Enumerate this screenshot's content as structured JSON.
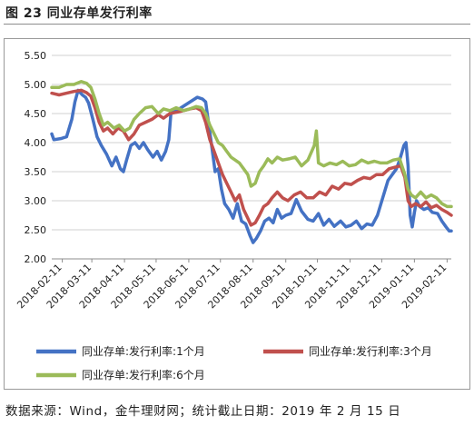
{
  "figure": {
    "title": "图 23 同业存单发行利率",
    "source": "数据来源：Wind，金牛理财网；统计截止日期：2019 年 2 月 15 日"
  },
  "chart_data": {
    "type": "line",
    "title": "",
    "xlabel": "",
    "ylabel": "",
    "ylim": [
      2.0,
      5.5
    ],
    "yticks": [
      "5.50",
      "5.00",
      "4.50",
      "4.00",
      "3.50",
      "3.00",
      "2.50",
      "2.00"
    ],
    "xticks": [
      "2018-02-11",
      "2018-03-11",
      "2018-04-11",
      "2018-05-11",
      "2018-06-11",
      "2018-07-11",
      "2018-08-11",
      "2018-09-11",
      "2018-10-11",
      "2018-11-11",
      "2018-12-11",
      "2019-01-11",
      "2019-02-11"
    ],
    "x_range": [
      "2018-02-01",
      "2019-02-15"
    ],
    "grid": "horizontal",
    "legend_position": "bottom",
    "series": [
      {
        "name": "同业存单:发行利率:1个月",
        "color": "#4472c4",
        "points": [
          [
            "2018-02-01",
            4.15
          ],
          [
            "2018-02-03",
            4.05
          ],
          [
            "2018-02-10",
            4.07
          ],
          [
            "2018-02-15",
            4.1
          ],
          [
            "2018-02-20",
            4.4
          ],
          [
            "2018-02-23",
            4.7
          ],
          [
            "2018-02-26",
            4.9
          ],
          [
            "2018-03-02",
            4.82
          ],
          [
            "2018-03-05",
            4.78
          ],
          [
            "2018-03-08",
            4.68
          ],
          [
            "2018-03-12",
            4.4
          ],
          [
            "2018-03-16",
            4.1
          ],
          [
            "2018-03-20",
            3.95
          ],
          [
            "2018-03-25",
            3.8
          ],
          [
            "2018-03-30",
            3.6
          ],
          [
            "2018-04-03",
            3.75
          ],
          [
            "2018-04-07",
            3.55
          ],
          [
            "2018-04-10",
            3.5
          ],
          [
            "2018-04-13",
            3.7
          ],
          [
            "2018-04-17",
            3.95
          ],
          [
            "2018-04-21",
            4.0
          ],
          [
            "2018-04-25",
            3.9
          ],
          [
            "2018-04-29",
            4.0
          ],
          [
            "2018-05-03",
            3.88
          ],
          [
            "2018-05-08",
            3.75
          ],
          [
            "2018-05-12",
            3.85
          ],
          [
            "2018-05-16",
            3.7
          ],
          [
            "2018-05-20",
            3.85
          ],
          [
            "2018-05-23",
            4.05
          ],
          [
            "2018-05-25",
            4.5
          ],
          [
            "2018-05-28",
            4.55
          ],
          [
            "2018-06-02",
            4.58
          ],
          [
            "2018-06-08",
            4.65
          ],
          [
            "2018-06-14",
            4.72
          ],
          [
            "2018-06-19",
            4.78
          ],
          [
            "2018-06-24",
            4.75
          ],
          [
            "2018-06-27",
            4.7
          ],
          [
            "2018-06-30",
            4.3
          ],
          [
            "2018-07-03",
            3.9
          ],
          [
            "2018-07-06",
            3.5
          ],
          [
            "2018-07-09",
            3.55
          ],
          [
            "2018-07-12",
            3.2
          ],
          [
            "2018-07-15",
            2.95
          ],
          [
            "2018-07-19",
            2.85
          ],
          [
            "2018-07-23",
            2.7
          ],
          [
            "2018-07-27",
            2.95
          ],
          [
            "2018-07-31",
            2.65
          ],
          [
            "2018-08-04",
            2.6
          ],
          [
            "2018-08-08",
            2.4
          ],
          [
            "2018-08-11",
            2.28
          ],
          [
            "2018-08-14",
            2.35
          ],
          [
            "2018-08-18",
            2.48
          ],
          [
            "2018-08-22",
            2.65
          ],
          [
            "2018-08-26",
            2.7
          ],
          [
            "2018-08-30",
            2.62
          ],
          [
            "2018-09-03",
            2.85
          ],
          [
            "2018-09-07",
            2.7
          ],
          [
            "2018-09-11",
            2.75
          ],
          [
            "2018-09-16",
            2.78
          ],
          [
            "2018-09-21",
            3.02
          ],
          [
            "2018-09-26",
            2.82
          ],
          [
            "2018-10-02",
            2.68
          ],
          [
            "2018-10-07",
            2.65
          ],
          [
            "2018-10-12",
            2.78
          ],
          [
            "2018-10-17",
            2.58
          ],
          [
            "2018-10-22",
            2.68
          ],
          [
            "2018-10-27",
            2.56
          ],
          [
            "2018-11-02",
            2.65
          ],
          [
            "2018-11-07",
            2.55
          ],
          [
            "2018-11-12",
            2.58
          ],
          [
            "2018-11-17",
            2.65
          ],
          [
            "2018-11-22",
            2.52
          ],
          [
            "2018-11-27",
            2.6
          ],
          [
            "2018-12-02",
            2.58
          ],
          [
            "2018-12-07",
            2.75
          ],
          [
            "2018-12-12",
            3.05
          ],
          [
            "2018-12-17",
            3.35
          ],
          [
            "2018-12-21",
            3.45
          ],
          [
            "2018-12-25",
            3.55
          ],
          [
            "2018-12-28",
            3.7
          ],
          [
            "2019-01-01",
            3.95
          ],
          [
            "2019-01-03",
            4.0
          ],
          [
            "2019-01-05",
            3.6
          ],
          [
            "2019-01-07",
            2.75
          ],
          [
            "2019-01-09",
            2.55
          ],
          [
            "2019-01-11",
            2.8
          ],
          [
            "2019-01-13",
            3.0
          ],
          [
            "2019-01-16",
            2.9
          ],
          [
            "2019-01-20",
            2.85
          ],
          [
            "2019-01-24",
            2.88
          ],
          [
            "2019-01-28",
            2.8
          ],
          [
            "2019-02-02",
            2.78
          ],
          [
            "2019-02-06",
            2.65
          ],
          [
            "2019-02-10",
            2.55
          ],
          [
            "2019-02-13",
            2.48
          ],
          [
            "2019-02-15",
            2.48
          ]
        ]
      },
      {
        "name": "同业存单:发行利率:3个月",
        "color": "#c0504d",
        "points": [
          [
            "2018-02-01",
            4.85
          ],
          [
            "2018-02-08",
            4.82
          ],
          [
            "2018-02-15",
            4.85
          ],
          [
            "2018-02-22",
            4.88
          ],
          [
            "2018-03-01",
            4.9
          ],
          [
            "2018-03-06",
            4.86
          ],
          [
            "2018-03-10",
            4.8
          ],
          [
            "2018-03-14",
            4.6
          ],
          [
            "2018-03-18",
            4.35
          ],
          [
            "2018-03-22",
            4.2
          ],
          [
            "2018-03-26",
            4.25
          ],
          [
            "2018-03-31",
            4.15
          ],
          [
            "2018-04-05",
            4.25
          ],
          [
            "2018-04-10",
            4.2
          ],
          [
            "2018-04-15",
            4.05
          ],
          [
            "2018-04-20",
            4.15
          ],
          [
            "2018-04-25",
            4.3
          ],
          [
            "2018-05-01",
            4.35
          ],
          [
            "2018-05-07",
            4.4
          ],
          [
            "2018-05-13",
            4.48
          ],
          [
            "2018-05-18",
            4.42
          ],
          [
            "2018-05-24",
            4.5
          ],
          [
            "2018-05-30",
            4.52
          ],
          [
            "2018-06-06",
            4.55
          ],
          [
            "2018-06-12",
            4.58
          ],
          [
            "2018-06-18",
            4.6
          ],
          [
            "2018-06-23",
            4.55
          ],
          [
            "2018-06-27",
            4.35
          ],
          [
            "2018-07-01",
            4.05
          ],
          [
            "2018-07-05",
            3.85
          ],
          [
            "2018-07-09",
            3.65
          ],
          [
            "2018-07-13",
            3.45
          ],
          [
            "2018-07-17",
            3.3
          ],
          [
            "2018-07-21",
            3.15
          ],
          [
            "2018-07-25",
            3.0
          ],
          [
            "2018-07-29",
            3.1
          ],
          [
            "2018-08-02",
            2.85
          ],
          [
            "2018-08-06",
            2.7
          ],
          [
            "2018-08-09",
            2.58
          ],
          [
            "2018-08-13",
            2.62
          ],
          [
            "2018-08-17",
            2.75
          ],
          [
            "2018-08-21",
            2.9
          ],
          [
            "2018-08-25",
            2.95
          ],
          [
            "2018-08-29",
            3.05
          ],
          [
            "2018-09-03",
            3.15
          ],
          [
            "2018-09-08",
            3.05
          ],
          [
            "2018-09-13",
            3.0
          ],
          [
            "2018-09-19",
            3.1
          ],
          [
            "2018-09-25",
            3.15
          ],
          [
            "2018-10-01",
            3.05
          ],
          [
            "2018-10-07",
            3.05
          ],
          [
            "2018-10-13",
            3.15
          ],
          [
            "2018-10-19",
            3.1
          ],
          [
            "2018-10-25",
            3.25
          ],
          [
            "2018-10-31",
            3.2
          ],
          [
            "2018-11-06",
            3.3
          ],
          [
            "2018-11-12",
            3.28
          ],
          [
            "2018-11-18",
            3.35
          ],
          [
            "2018-11-24",
            3.4
          ],
          [
            "2018-11-30",
            3.38
          ],
          [
            "2018-12-06",
            3.45
          ],
          [
            "2018-12-12",
            3.45
          ],
          [
            "2018-12-18",
            3.55
          ],
          [
            "2018-12-24",
            3.58
          ],
          [
            "2018-12-29",
            3.6
          ],
          [
            "2019-01-02",
            3.4
          ],
          [
            "2019-01-05",
            3.0
          ],
          [
            "2019-01-08",
            2.9
          ],
          [
            "2019-01-12",
            2.95
          ],
          [
            "2019-01-17",
            2.9
          ],
          [
            "2019-01-22",
            2.98
          ],
          [
            "2019-01-27",
            2.88
          ],
          [
            "2019-02-01",
            2.92
          ],
          [
            "2019-02-06",
            2.85
          ],
          [
            "2019-02-11",
            2.8
          ],
          [
            "2019-02-15",
            2.75
          ]
        ]
      },
      {
        "name": "同业存单:发行利率:6个月",
        "color": "#9bbb59",
        "points": [
          [
            "2018-02-01",
            4.95
          ],
          [
            "2018-02-08",
            4.95
          ],
          [
            "2018-02-15",
            5.0
          ],
          [
            "2018-02-22",
            5.0
          ],
          [
            "2018-03-01",
            5.05
          ],
          [
            "2018-03-06",
            5.02
          ],
          [
            "2018-03-10",
            4.95
          ],
          [
            "2018-03-14",
            4.75
          ],
          [
            "2018-03-18",
            4.5
          ],
          [
            "2018-03-22",
            4.3
          ],
          [
            "2018-03-26",
            4.35
          ],
          [
            "2018-04-01",
            4.25
          ],
          [
            "2018-04-06",
            4.3
          ],
          [
            "2018-04-11",
            4.2
          ],
          [
            "2018-04-16",
            4.25
          ],
          [
            "2018-04-20",
            4.4
          ],
          [
            "2018-04-25",
            4.5
          ],
          [
            "2018-05-01",
            4.6
          ],
          [
            "2018-05-07",
            4.62
          ],
          [
            "2018-05-13",
            4.5
          ],
          [
            "2018-05-18",
            4.58
          ],
          [
            "2018-05-24",
            4.55
          ],
          [
            "2018-05-30",
            4.6
          ],
          [
            "2018-06-06",
            4.55
          ],
          [
            "2018-06-12",
            4.58
          ],
          [
            "2018-06-18",
            4.62
          ],
          [
            "2018-06-23",
            4.6
          ],
          [
            "2018-06-27",
            4.5
          ],
          [
            "2018-07-01",
            4.3
          ],
          [
            "2018-07-05",
            4.15
          ],
          [
            "2018-07-09",
            4.0
          ],
          [
            "2018-07-13",
            3.95
          ],
          [
            "2018-07-17",
            3.85
          ],
          [
            "2018-07-21",
            3.75
          ],
          [
            "2018-07-25",
            3.7
          ],
          [
            "2018-07-29",
            3.65
          ],
          [
            "2018-08-02",
            3.55
          ],
          [
            "2018-08-06",
            3.45
          ],
          [
            "2018-08-09",
            3.25
          ],
          [
            "2018-08-13",
            3.3
          ],
          [
            "2018-08-17",
            3.5
          ],
          [
            "2018-08-21",
            3.6
          ],
          [
            "2018-08-25",
            3.72
          ],
          [
            "2018-08-29",
            3.65
          ],
          [
            "2018-09-03",
            3.75
          ],
          [
            "2018-09-08",
            3.7
          ],
          [
            "2018-09-14",
            3.72
          ],
          [
            "2018-09-20",
            3.75
          ],
          [
            "2018-09-26",
            3.6
          ],
          [
            "2018-10-02",
            3.7
          ],
          [
            "2018-10-08",
            3.95
          ],
          [
            "2018-10-10",
            4.2
          ],
          [
            "2018-10-12",
            3.65
          ],
          [
            "2018-10-17",
            3.6
          ],
          [
            "2018-10-23",
            3.65
          ],
          [
            "2018-10-29",
            3.62
          ],
          [
            "2018-11-04",
            3.68
          ],
          [
            "2018-11-10",
            3.6
          ],
          [
            "2018-11-16",
            3.62
          ],
          [
            "2018-11-22",
            3.7
          ],
          [
            "2018-11-28",
            3.65
          ],
          [
            "2018-12-04",
            3.68
          ],
          [
            "2018-12-10",
            3.65
          ],
          [
            "2018-12-16",
            3.65
          ],
          [
            "2018-12-22",
            3.7
          ],
          [
            "2018-12-28",
            3.72
          ],
          [
            "2019-01-02",
            3.45
          ],
          [
            "2019-01-05",
            3.2
          ],
          [
            "2019-01-08",
            3.1
          ],
          [
            "2019-01-12",
            3.05
          ],
          [
            "2019-01-17",
            3.15
          ],
          [
            "2019-01-22",
            3.05
          ],
          [
            "2019-01-27",
            3.1
          ],
          [
            "2019-02-01",
            3.05
          ],
          [
            "2019-02-06",
            2.95
          ],
          [
            "2019-02-11",
            2.9
          ],
          [
            "2019-02-15",
            2.9
          ]
        ]
      }
    ]
  }
}
